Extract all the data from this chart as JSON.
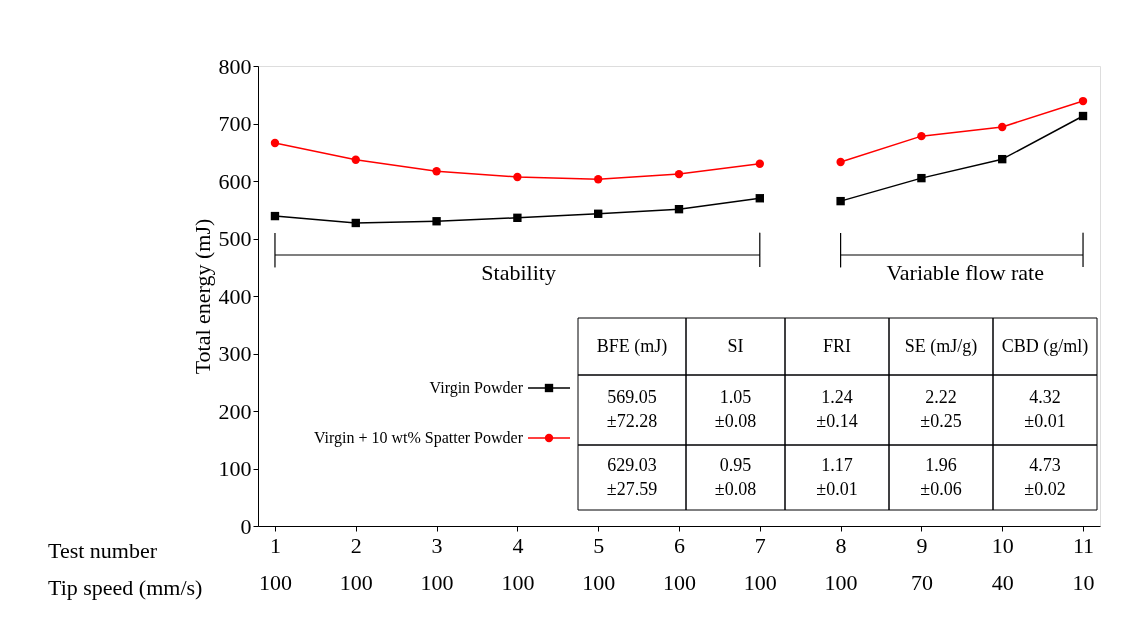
{
  "chart_data": {
    "type": "line",
    "ylabel": "Total energy (mJ)",
    "xlabel": "Test number\nTip speed (mm/s)",
    "categories": [
      "1\n100",
      "2\n100",
      "3\n100",
      "4\n100",
      "5\n100",
      "6\n100",
      "7\n100",
      "8\n100",
      "9\n70",
      "10\n40",
      "11\n10"
    ],
    "series": [
      {
        "name": "Virgin Powder",
        "color": "#000000",
        "marker": "square",
        "values": [
          539,
          527,
          530,
          536,
          543,
          551,
          570,
          null,
          null,
          null,
          null
        ]
      },
      {
        "color": "#000000",
        "marker": "square",
        "values": [
          null,
          null,
          null,
          null,
          null,
          null,
          null,
          565,
          605,
          638,
          713
        ]
      },
      {
        "name": "Virgin + 10 wt% Spatter Powder",
        "color": "#ff0000",
        "marker": "circle",
        "values": [
          666,
          637,
          617,
          607,
          603,
          612,
          630,
          null,
          null,
          null,
          null
        ]
      },
      {
        "color": "#ff0000",
        "marker": "circle",
        "values": [
          null,
          null,
          null,
          null,
          null,
          null,
          null,
          633,
          678,
          694,
          739
        ]
      }
    ],
    "ylim": [
      0,
      800
    ],
    "yticks": [
      0,
      100,
      200,
      300,
      400,
      500,
      600,
      700,
      800
    ],
    "annotations": [
      "Stability",
      "Variable flow rate",
      "BFE (mJ)",
      "SI",
      "FRI",
      "SE (mJ/g)",
      "CBD (g/ml)",
      "569.05\n±72.28",
      "1.05\n±0.08",
      "1.24\n±0.14",
      "2.22\n±0.25",
      "4.32\n±0.01",
      "629.03\n±27.59",
      "0.95\n±0.08",
      "1.17\n±0.01",
      "1.96\n±0.06",
      "4.73\n±0.02"
    ],
    "legend": "bottom",
    "line_style": "solid"
  }
}
